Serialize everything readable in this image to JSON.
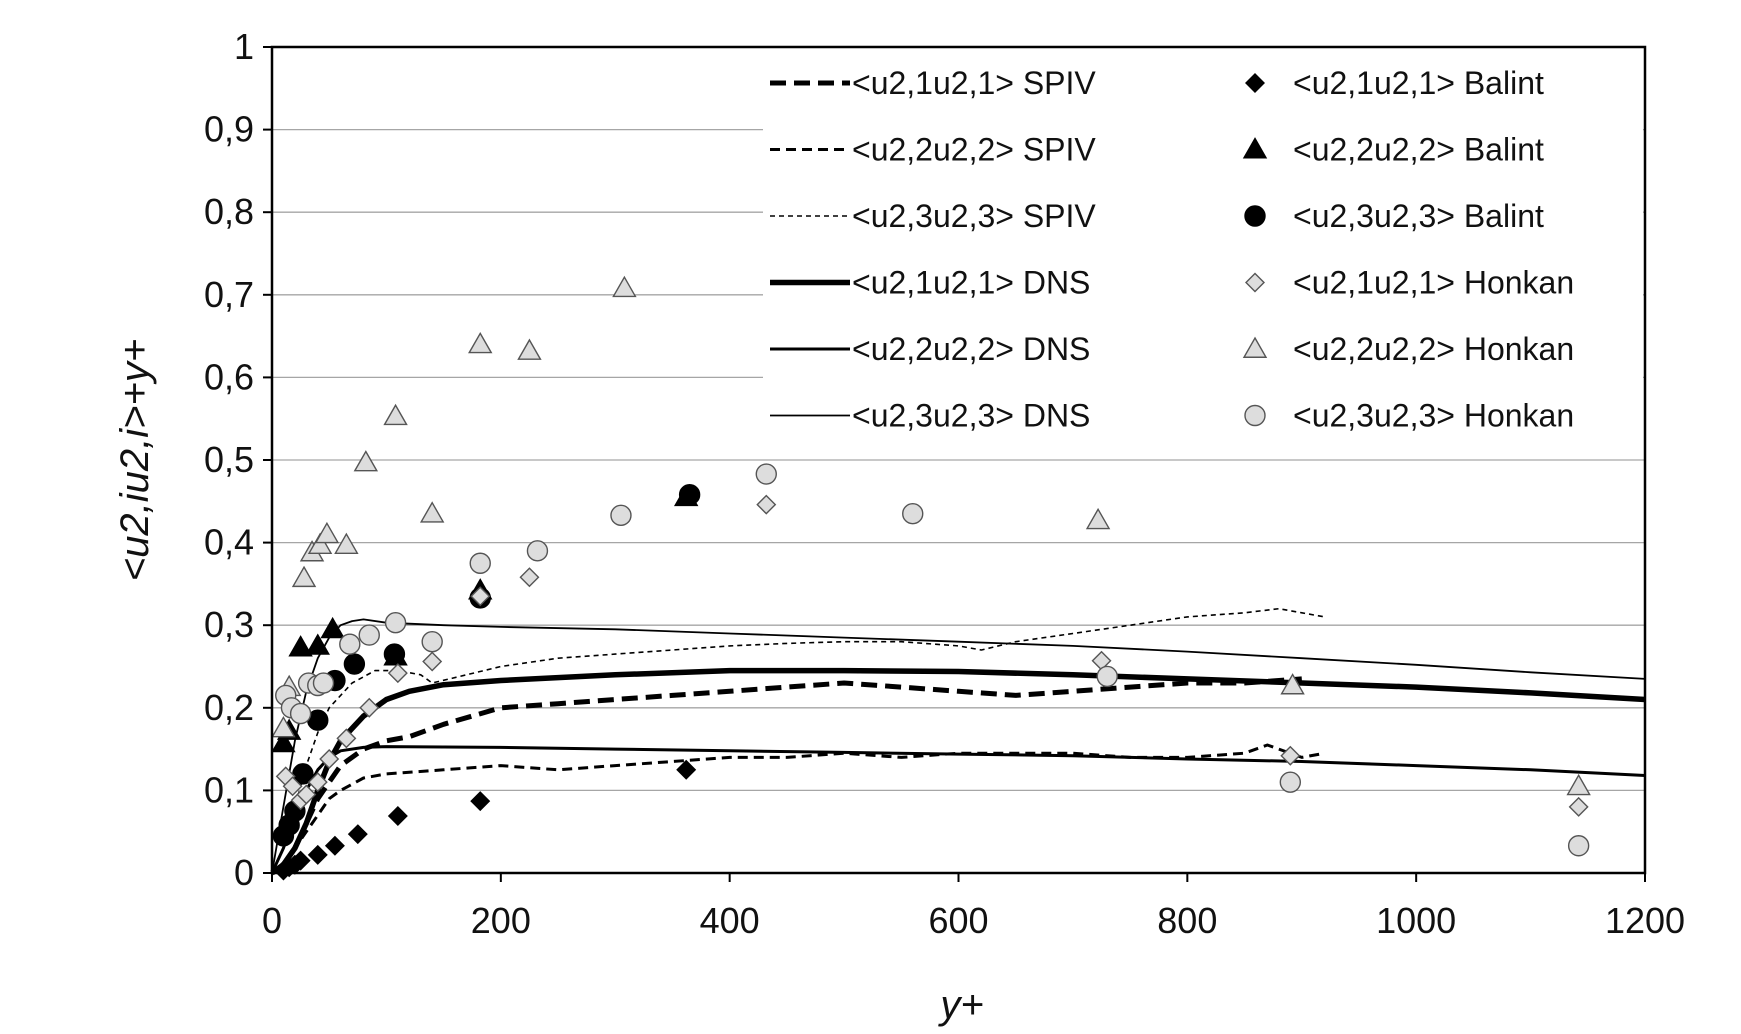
{
  "chart_data": {
    "type": "scatter",
    "title": "",
    "xlabel": "y+",
    "ylabel": "<u2,iu2,i>+y+",
    "xlim": [
      0,
      1200
    ],
    "ylim": [
      0,
      1
    ],
    "x_ticks": [
      "0",
      "200",
      "400",
      "600",
      "800",
      "1000",
      "1200"
    ],
    "y_ticks": [
      "0",
      "0,1",
      "0,2",
      "0,3",
      "0,4",
      "0,5",
      "0,6",
      "0,7",
      "0,8",
      "0,9",
      "1"
    ],
    "grid": "horizontal",
    "legend_position": "top-right",
    "series": [
      {
        "name": "<u2,1u2,1> SPIV",
        "kind": "line",
        "style": "dash-thick",
        "x": [
          10,
          20,
          30,
          40,
          50,
          60,
          80,
          100,
          120,
          150,
          200,
          250,
          300,
          350,
          400,
          450,
          500,
          550,
          600,
          650,
          700,
          750,
          800,
          850,
          900
        ],
        "y": [
          0.01,
          0.03,
          0.06,
          0.09,
          0.11,
          0.13,
          0.15,
          0.16,
          0.165,
          0.18,
          0.2,
          0.205,
          0.21,
          0.215,
          0.22,
          0.225,
          0.23,
          0.225,
          0.22,
          0.215,
          0.22,
          0.225,
          0.23,
          0.23,
          0.235
        ]
      },
      {
        "name": "<u2,2u2,2> SPIV",
        "kind": "line",
        "style": "dash-medium",
        "x": [
          10,
          20,
          30,
          40,
          50,
          60,
          80,
          100,
          150,
          200,
          250,
          300,
          350,
          400,
          450,
          500,
          550,
          600,
          650,
          700,
          750,
          800,
          850,
          870,
          900,
          920
        ],
        "y": [
          0.01,
          0.03,
          0.05,
          0.07,
          0.09,
          0.1,
          0.115,
          0.12,
          0.125,
          0.13,
          0.125,
          0.13,
          0.135,
          0.14,
          0.14,
          0.145,
          0.14,
          0.145,
          0.145,
          0.145,
          0.14,
          0.14,
          0.145,
          0.155,
          0.14,
          0.145
        ]
      },
      {
        "name": "<u2,3u2,3> SPIV",
        "kind": "line",
        "style": "dash-thin",
        "x": [
          10,
          20,
          30,
          40,
          50,
          70,
          90,
          110,
          130,
          140,
          170,
          200,
          250,
          300,
          350,
          400,
          450,
          500,
          550,
          600,
          620,
          650,
          700,
          750,
          800,
          850,
          880,
          900,
          920
        ],
        "y": [
          0.03,
          0.08,
          0.13,
          0.17,
          0.2,
          0.23,
          0.245,
          0.245,
          0.24,
          0.23,
          0.24,
          0.25,
          0.26,
          0.265,
          0.27,
          0.275,
          0.278,
          0.28,
          0.28,
          0.275,
          0.27,
          0.28,
          0.29,
          0.3,
          0.31,
          0.315,
          0.32,
          0.315,
          0.31
        ]
      },
      {
        "name": "<u2,1u2,1> DNS",
        "kind": "line",
        "style": "solid-thick",
        "x": [
          0,
          10,
          20,
          30,
          40,
          50,
          60,
          80,
          100,
          120,
          150,
          200,
          300,
          400,
          500,
          600,
          700,
          800,
          900,
          1000,
          1100,
          1200
        ],
        "y": [
          0,
          0.01,
          0.03,
          0.06,
          0.1,
          0.135,
          0.16,
          0.19,
          0.21,
          0.22,
          0.228,
          0.233,
          0.24,
          0.245,
          0.245,
          0.244,
          0.24,
          0.235,
          0.23,
          0.225,
          0.218,
          0.21
        ]
      },
      {
        "name": "<u2,2u2,2> DNS",
        "kind": "line",
        "style": "solid-medium",
        "x": [
          0,
          10,
          20,
          30,
          40,
          50,
          60,
          80,
          100,
          200,
          300,
          400,
          500,
          600,
          700,
          800,
          900,
          1000,
          1100,
          1200
        ],
        "y": [
          0,
          0.03,
          0.07,
          0.1,
          0.125,
          0.14,
          0.148,
          0.152,
          0.153,
          0.152,
          0.15,
          0.148,
          0.146,
          0.144,
          0.142,
          0.138,
          0.135,
          0.13,
          0.125,
          0.118
        ]
      },
      {
        "name": "<u2,3u2,3> DNS",
        "kind": "line",
        "style": "solid-thin",
        "x": [
          0,
          10,
          20,
          30,
          40,
          50,
          60,
          70,
          80,
          100,
          150,
          200,
          300,
          400,
          500,
          600,
          700,
          800,
          900,
          1000,
          1100,
          1200
        ],
        "y": [
          0,
          0.08,
          0.16,
          0.22,
          0.26,
          0.285,
          0.3,
          0.305,
          0.307,
          0.303,
          0.3,
          0.298,
          0.295,
          0.29,
          0.285,
          0.28,
          0.275,
          0.268,
          0.26,
          0.252,
          0.243,
          0.235
        ]
      },
      {
        "name": "<u2,1u2,1> Balint",
        "kind": "marker",
        "marker": "diamond",
        "fill": "#000000",
        "x": [
          10,
          15,
          20,
          25,
          40,
          55,
          75,
          110,
          182,
          362
        ],
        "y": [
          0.003,
          0.007,
          0.01,
          0.015,
          0.022,
          0.033,
          0.047,
          0.069,
          0.087,
          0.125
        ]
      },
      {
        "name": "<u2,2u2,2> Balint",
        "kind": "marker",
        "marker": "triangle",
        "fill": "#000000",
        "x": [
          10,
          15,
          25,
          40,
          53,
          108,
          182,
          362
        ],
        "y": [
          0.157,
          0.172,
          0.273,
          0.275,
          0.295,
          0.262,
          0.342,
          0.455
        ]
      },
      {
        "name": "<u2,3u2,3> Balint",
        "kind": "marker",
        "marker": "circle",
        "fill": "#000000",
        "x": [
          10,
          15,
          20,
          27,
          40,
          55,
          72,
          107,
          182,
          365
        ],
        "y": [
          0.045,
          0.058,
          0.075,
          0.12,
          0.185,
          0.233,
          0.253,
          0.265,
          0.333,
          0.458
        ]
      },
      {
        "name": "<u2,1u2,1> Honkan",
        "kind": "marker",
        "marker": "diamond",
        "fill": "#dddddd",
        "x": [
          12,
          18,
          25,
          30,
          40,
          50,
          65,
          85,
          110,
          140,
          182,
          225,
          432,
          725,
          890,
          1142
        ],
        "y": [
          0.117,
          0.105,
          0.088,
          0.095,
          0.11,
          0.138,
          0.163,
          0.2,
          0.242,
          0.256,
          0.335,
          0.358,
          0.446,
          0.257,
          0.142,
          0.08
        ]
      },
      {
        "name": "<u2,2u2,2> Honkan",
        "kind": "marker",
        "marker": "triangle",
        "fill": "#dddddd",
        "x": [
          10,
          15,
          28,
          35,
          42,
          48,
          65,
          82,
          108,
          140,
          182,
          225,
          308,
          722,
          892,
          1142
        ],
        "y": [
          0.175,
          0.225,
          0.357,
          0.388,
          0.397,
          0.41,
          0.397,
          0.497,
          0.553,
          0.435,
          0.64,
          0.632,
          0.708,
          0.427,
          0.227,
          0.105
        ]
      },
      {
        "name": "<u2,3u2,3> Honkan",
        "kind": "marker",
        "marker": "circle",
        "fill": "#dddddd",
        "x": [
          12,
          17,
          25,
          32,
          40,
          45,
          68,
          85,
          108,
          140,
          182,
          232,
          305,
          432,
          560,
          730,
          890,
          1142
        ],
        "y": [
          0.215,
          0.2,
          0.193,
          0.23,
          0.227,
          0.23,
          0.277,
          0.288,
          0.303,
          0.28,
          0.375,
          0.39,
          0.433,
          0.483,
          0.435,
          0.238,
          0.11,
          0.033
        ]
      }
    ]
  }
}
